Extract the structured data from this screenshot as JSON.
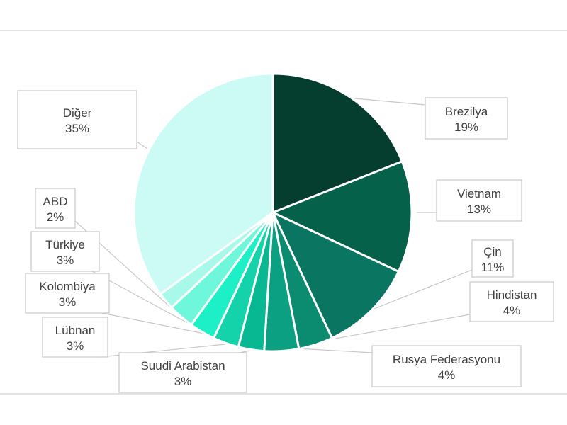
{
  "chart_data": {
    "type": "pie",
    "title": "",
    "slices": [
      {
        "label": "Brezilya",
        "value": 19,
        "value_label": "19%",
        "color": "#053d2e"
      },
      {
        "label": "Vietnam",
        "value": 13,
        "value_label": "13%",
        "color": "#06614b"
      },
      {
        "label": "Çin",
        "value": 11,
        "value_label": "11%",
        "color": "#0a7560"
      },
      {
        "label": "Hindistan",
        "value": 4,
        "value_label": "4%",
        "color": "#0b8c71"
      },
      {
        "label": "Rusya Federasyonu",
        "value": 4,
        "value_label": "4%",
        "color": "#0ba081"
      },
      {
        "label": "Suudi Arabistan",
        "value": 3,
        "value_label": "3%",
        "color": "#08b893"
      },
      {
        "label": "Lübnan",
        "value": 3,
        "value_label": "3%",
        "color": "#14d2a9"
      },
      {
        "label": "Kolombiya",
        "value": 3,
        "value_label": "3%",
        "color": "#1df0c6"
      },
      {
        "label": "Türkiye",
        "value": 3,
        "value_label": "3%",
        "color": "#6ff7dc"
      },
      {
        "label": "ABD",
        "value": 2,
        "value_label": "2%",
        "color": "#a8f9e9"
      },
      {
        "label": "Diğer",
        "value": 35,
        "value_label": "35%",
        "color": "#ccfbf5"
      }
    ],
    "legend": "none",
    "label_style": "callouts with leader lines"
  }
}
